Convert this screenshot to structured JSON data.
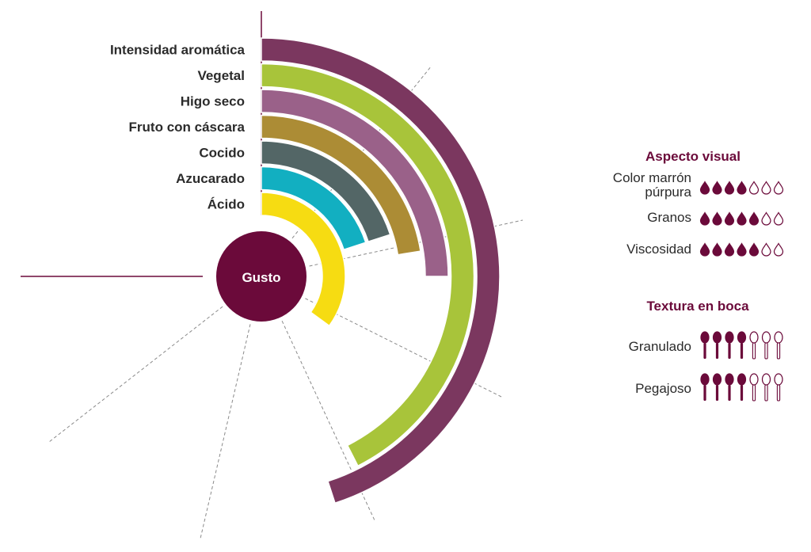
{
  "chart_data": {
    "type": "radial-bar",
    "center_label": "Gusto",
    "scale_max": 10,
    "series": [
      {
        "label": "Intensidad aromática",
        "value": 9,
        "color": "#7b375f"
      },
      {
        "label": "Vegetal",
        "value": 8.5,
        "color": "#a8c43a"
      },
      {
        "label": "Higo seco",
        "value": 5,
        "color": "#9a6189"
      },
      {
        "label": "Fruto con cáscara",
        "value": 4.5,
        "color": "#ac8c35"
      },
      {
        "label": "Cocido",
        "value": 4,
        "color": "#536666"
      },
      {
        "label": "Azucarado",
        "value": 4,
        "color": "#12afc1"
      },
      {
        "label": "Ácido",
        "value": 7,
        "color": "#f6dc12"
      }
    ]
  },
  "panels": {
    "visual": {
      "title": "Aspecto visual",
      "icon": "drop-icon",
      "max": 7,
      "items": [
        {
          "label_lines": [
            "Color marrón",
            "púrpura"
          ],
          "value": 4
        },
        {
          "label_lines": [
            "Granos"
          ],
          "value": 5
        },
        {
          "label_lines": [
            "Viscosidad"
          ],
          "value": 5
        }
      ]
    },
    "texture": {
      "title": "Textura en boca",
      "icon": "spoon-icon",
      "max": 7,
      "items": [
        {
          "label_lines": [
            "Granulado"
          ],
          "value": 4
        },
        {
          "label_lines": [
            "Pegajoso"
          ],
          "value": 4
        }
      ]
    }
  },
  "colors": {
    "accent": "#6b0a3a",
    "text": "#2b2b2b",
    "guide_line": "#8a8a8a"
  }
}
